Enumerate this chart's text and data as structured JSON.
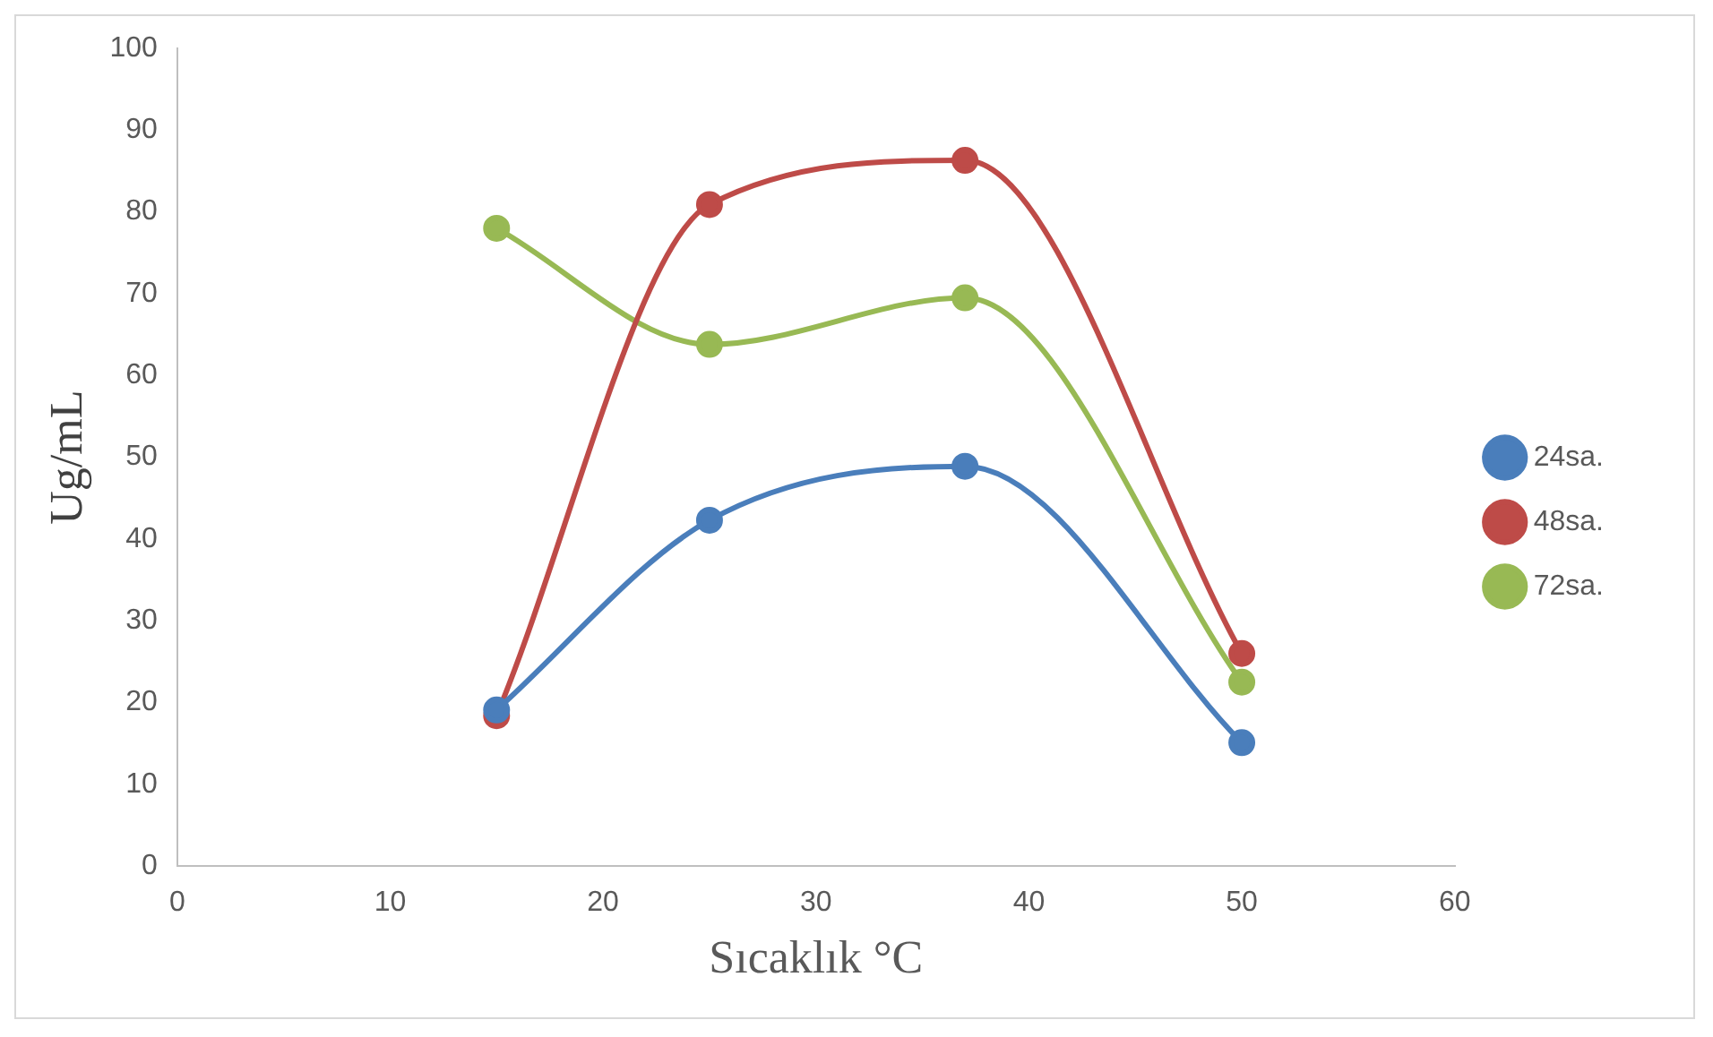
{
  "chart_data": {
    "type": "line",
    "xlabel": "Sıcaklık °C",
    "ylabel": "Ug/mL",
    "x": [
      15,
      25,
      37,
      50
    ],
    "series": [
      {
        "name": "24sa.",
        "color": "#4a7ebb",
        "values": [
          19.1,
          42.3,
          48.9,
          15.1
        ]
      },
      {
        "name": "48sa.",
        "color": "#be4b48",
        "values": [
          18.4,
          80.9,
          86.3,
          26.0
        ]
      },
      {
        "name": "72sa.",
        "color": "#98b954",
        "values": [
          78.0,
          63.8,
          69.5,
          22.5
        ]
      }
    ],
    "xlim": [
      0,
      60
    ],
    "xticks": [
      0,
      10,
      20,
      30,
      40,
      50,
      60
    ],
    "ylim": [
      0,
      100
    ],
    "yticks": [
      0,
      10,
      20,
      30,
      40,
      50,
      60,
      70,
      80,
      90,
      100
    ],
    "grid": false,
    "legend": "right",
    "marker": "circle",
    "line_style": "solid"
  }
}
